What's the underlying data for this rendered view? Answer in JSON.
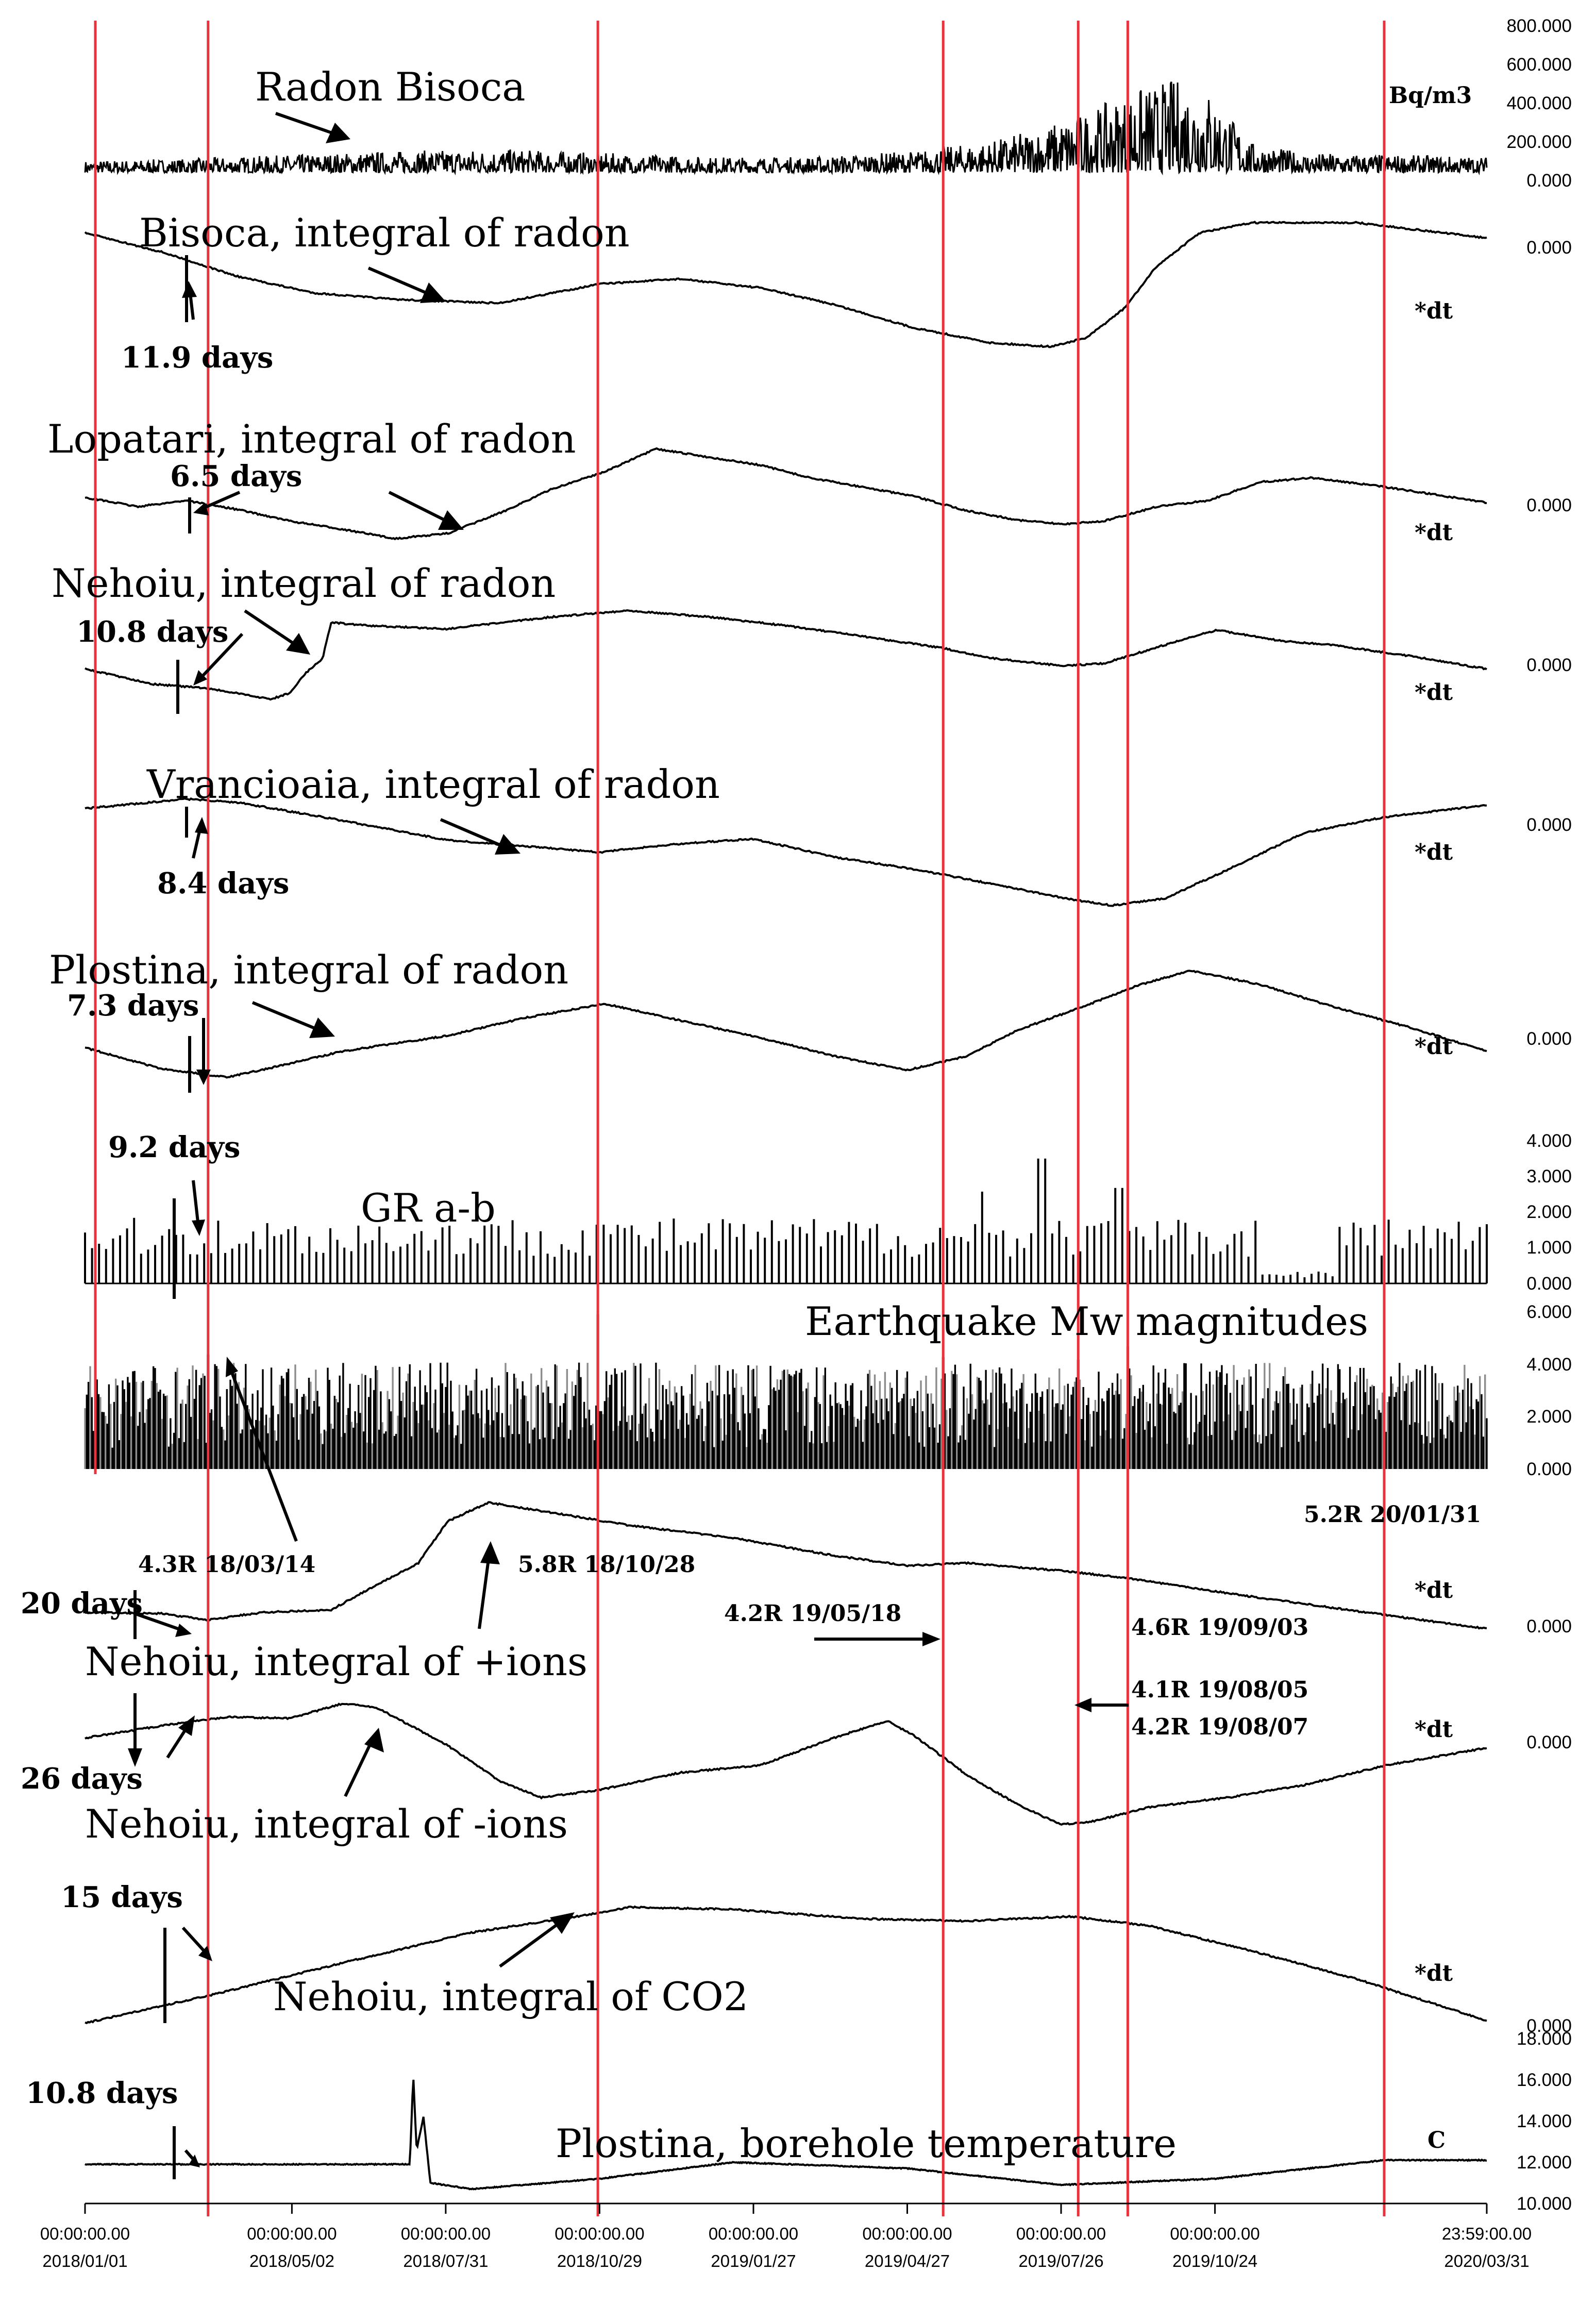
{
  "chart_data": {
    "type": "line",
    "x_start": "2018/01/01",
    "x_end": "2020/03/31",
    "panel_colors": {
      "trace": "#000000",
      "event_line": "#e8323c",
      "gray_bars": "#8c8c8c"
    },
    "time_axis": {
      "ticks": [
        {
          "time": "00:00:00.00",
          "date": "2018/01/01"
        },
        {
          "time": "00:00:00.00",
          "date": "2018/05/02"
        },
        {
          "time": "00:00:00.00",
          "date": "2018/07/31"
        },
        {
          "time": "00:00:00.00",
          "date": "2018/10/29"
        },
        {
          "time": "00:00:00.00",
          "date": "2019/01/27"
        },
        {
          "time": "00:00:00.00",
          "date": "2019/04/27"
        },
        {
          "time": "00:00:00.00",
          "date": "2019/07/26"
        },
        {
          "time": "00:00:00.00",
          "date": "2019/10/24"
        },
        {
          "time": "23:59:00.00",
          "date": "2020/03/31"
        }
      ]
    },
    "event_lines": [
      "2018/03/14",
      "2018/10/28",
      "2019/05/18",
      "2019/08/05",
      "2019/09/03",
      "2020/01/31"
    ],
    "panels": [
      {
        "id": "radon-bisoca",
        "title": "Radon Bisoca",
        "unit": "Bq/m3",
        "ticks": [
          "800.000",
          "600.000",
          "400.000",
          "200.000",
          "0.000"
        ],
        "ylim": [
          0,
          800000
        ],
        "kind": "noise",
        "base": 40000,
        "points": [
          [
            "2018/01/01",
            60000
          ],
          [
            "2018/03/01",
            70000
          ],
          [
            "2018/05/01",
            90000
          ],
          [
            "2018/07/01",
            110000
          ],
          [
            "2018/09/01",
            120000
          ],
          [
            "2018/11/01",
            100000
          ],
          [
            "2019/01/01",
            80000
          ],
          [
            "2019/03/01",
            80000
          ],
          [
            "2019/05/01",
            110000
          ],
          [
            "2019/06/15",
            160000
          ],
          [
            "2019/07/15",
            230000
          ],
          [
            "2019/08/15",
            330000
          ],
          [
            "2019/09/10",
            430000
          ],
          [
            "2019/10/01",
            480000
          ],
          [
            "2019/10/20",
            420000
          ],
          [
            "2019/11/15",
            150000
          ],
          [
            "2019/12/15",
            100000
          ],
          [
            "2020/03/31",
            80000
          ]
        ]
      },
      {
        "id": "bisoca-integral",
        "title": "Bisoca, integral of radon",
        "unit": "*dt",
        "ticks": [
          "0.000"
        ],
        "kind": "line",
        "ylim": [
          0,
          1
        ],
        "points": [
          [
            "2018/01/01",
            0.92
          ],
          [
            "2018/02/15",
            0.77
          ],
          [
            "2018/03/31",
            0.58
          ],
          [
            "2018/05/15",
            0.45
          ],
          [
            "2018/07/01",
            0.4
          ],
          [
            "2018/08/31",
            0.37
          ],
          [
            "2018/10/29",
            0.52
          ],
          [
            "2018/12/15",
            0.56
          ],
          [
            "2019/01/31",
            0.49
          ],
          [
            "2019/03/15",
            0.36
          ],
          [
            "2019/04/30",
            0.18
          ],
          [
            "2019/06/15",
            0.06
          ],
          [
            "2019/07/20",
            0.03
          ],
          [
            "2019/08/10",
            0.1
          ],
          [
            "2019/09/01",
            0.33
          ],
          [
            "2019/09/20",
            0.66
          ],
          [
            "2019/10/15",
            0.92
          ],
          [
            "2019/11/15",
            1.0
          ],
          [
            "2020/01/15",
            1.0
          ],
          [
            "2020/03/31",
            0.88
          ]
        ]
      },
      {
        "id": "lopatari-integral",
        "title": "Lopatari, integral of radon",
        "unit": "*dt",
        "ticks": [
          "0.000"
        ],
        "kind": "line",
        "ylim": [
          0,
          1
        ],
        "points": [
          [
            "2018/01/01",
            0.45
          ],
          [
            "2018/02/01",
            0.36
          ],
          [
            "2018/03/01",
            0.42
          ],
          [
            "2018/04/01",
            0.33
          ],
          [
            "2018/05/01",
            0.22
          ],
          [
            "2018/06/01",
            0.14
          ],
          [
            "2018/07/01",
            0.05
          ],
          [
            "2018/08/01",
            0.1
          ],
          [
            "2018/09/01",
            0.3
          ],
          [
            "2018/10/01",
            0.53
          ],
          [
            "2018/11/01",
            0.7
          ],
          [
            "2018/12/01",
            0.92
          ],
          [
            "2019/01/01",
            0.84
          ],
          [
            "2019/02/01",
            0.76
          ],
          [
            "2019/03/01",
            0.64
          ],
          [
            "2019/04/01",
            0.55
          ],
          [
            "2019/05/01",
            0.46
          ],
          [
            "2019/06/01",
            0.32
          ],
          [
            "2019/07/01",
            0.23
          ],
          [
            "2019/07/26",
            0.19
          ],
          [
            "2019/08/20",
            0.22
          ],
          [
            "2019/09/20",
            0.36
          ],
          [
            "2019/10/20",
            0.42
          ],
          [
            "2019/11/20",
            0.6
          ],
          [
            "2019/12/20",
            0.64
          ],
          [
            "2020/02/01",
            0.55
          ],
          [
            "2020/03/31",
            0.4
          ]
        ]
      },
      {
        "id": "nehoiu-radon-integral",
        "title": "Nehoiu, integral of radon",
        "unit": "*dt",
        "ticks": [
          "0.000"
        ],
        "kind": "line",
        "ylim": [
          0,
          1
        ],
        "points": [
          [
            "2018/01/01",
            0.32
          ],
          [
            "2018/02/10",
            0.18
          ],
          [
            "2018/03/14",
            0.14
          ],
          [
            "2018/04/20",
            0.04
          ],
          [
            "2018/05/01",
            0.1
          ],
          [
            "2018/05/10",
            0.28
          ],
          [
            "2018/05/20",
            0.42
          ],
          [
            "2018/05/25",
            0.75
          ],
          [
            "2018/06/15",
            0.72
          ],
          [
            "2018/08/01",
            0.69
          ],
          [
            "2018/10/01",
            0.8
          ],
          [
            "2018/11/15",
            0.86
          ],
          [
            "2019/01/01",
            0.8
          ],
          [
            "2019/02/15",
            0.72
          ],
          [
            "2019/04/01",
            0.62
          ],
          [
            "2019/05/15",
            0.52
          ],
          [
            "2019/06/15",
            0.42
          ],
          [
            "2019/07/26",
            0.35
          ],
          [
            "2019/08/20",
            0.37
          ],
          [
            "2019/09/20",
            0.52
          ],
          [
            "2019/10/25",
            0.68
          ],
          [
            "2019/12/01",
            0.58
          ],
          [
            "2020/01/01",
            0.54
          ],
          [
            "2020/02/15",
            0.44
          ],
          [
            "2020/03/31",
            0.32
          ]
        ]
      },
      {
        "id": "vrancioaia-integral",
        "title": "Vrancioaia, integral of radon",
        "unit": "*dt",
        "ticks": [
          "0.000"
        ],
        "kind": "line",
        "ylim": [
          0,
          1
        ],
        "points": [
          [
            "2018/01/01",
            0.92
          ],
          [
            "2018/03/01",
            1.0
          ],
          [
            "2018/04/01",
            0.97
          ],
          [
            "2018/06/01",
            0.82
          ],
          [
            "2018/08/01",
            0.66
          ],
          [
            "2018/10/29",
            0.56
          ],
          [
            "2018/12/15",
            0.63
          ],
          [
            "2019/01/27",
            0.67
          ],
          [
            "2019/03/15",
            0.52
          ],
          [
            "2019/05/01",
            0.42
          ],
          [
            "2019/06/15",
            0.3
          ],
          [
            "2019/08/01",
            0.17
          ],
          [
            "2019/08/25",
            0.12
          ],
          [
            "2019/09/25",
            0.18
          ],
          [
            "2019/11/01",
            0.42
          ],
          [
            "2019/12/15",
            0.72
          ],
          [
            "2020/01/31",
            0.85
          ],
          [
            "2020/03/31",
            0.95
          ]
        ]
      },
      {
        "id": "plostina-integral",
        "title": "Plostina, integral of radon",
        "unit": "*dt",
        "ticks": [
          "0.000"
        ],
        "kind": "line",
        "ylim": [
          0,
          1
        ],
        "points": [
          [
            "2018/01/01",
            0.25
          ],
          [
            "2018/02/15",
            0.07
          ],
          [
            "2018/03/25",
            0.0
          ],
          [
            "2018/04/20",
            0.08
          ],
          [
            "2018/06/01",
            0.22
          ],
          [
            "2018/08/01",
            0.35
          ],
          [
            "2018/09/15",
            0.5
          ],
          [
            "2018/11/01",
            0.62
          ],
          [
            "2018/12/15",
            0.48
          ],
          [
            "2019/02/01",
            0.33
          ],
          [
            "2019/03/15",
            0.18
          ],
          [
            "2019/04/27",
            0.06
          ],
          [
            "2019/06/01",
            0.18
          ],
          [
            "2019/07/01",
            0.4
          ],
          [
            "2019/08/05",
            0.58
          ],
          [
            "2019/09/10",
            0.78
          ],
          [
            "2019/10/10",
            0.9
          ],
          [
            "2019/11/20",
            0.78
          ],
          [
            "2019/12/31",
            0.6
          ],
          [
            "2020/02/15",
            0.42
          ],
          [
            "2020/03/31",
            0.22
          ]
        ]
      },
      {
        "id": "gr-ab",
        "title": "GR a-b",
        "unit": "",
        "ticks": [
          "4.000",
          "3.000",
          "2.000",
          "1.000",
          "0.000"
        ],
        "ylim": [
          0,
          4
        ],
        "kind": "spikes",
        "base": 1.2,
        "peaks": [
          [
            "2018/10/29",
            1.6
          ],
          [
            "2019/06/10",
            2.5
          ],
          [
            "2019/07/15",
            3.4
          ],
          [
            "2019/08/28",
            2.6
          ]
        ]
      },
      {
        "id": "mw-magnitudes",
        "title": "Earthquake Mw magnitudes",
        "unit": "",
        "ticks": [
          "6.000",
          "4.000",
          "2.000",
          "0.000"
        ],
        "ylim": [
          0,
          6
        ],
        "kind": "bars",
        "peaks": [
          [
            "2018/03/14",
            4.3
          ],
          [
            "2018/10/28",
            5.8
          ],
          [
            "2019/05/18",
            4.2
          ],
          [
            "2019/08/05",
            4.1
          ],
          [
            "2019/09/03",
            4.6
          ],
          [
            "2020/01/31",
            5.2
          ]
        ]
      },
      {
        "id": "nehoiu-pos-ions",
        "title": "Nehoiu, integral of +ions",
        "unit": "*dt",
        "ticks": [
          "0.000"
        ],
        "kind": "line",
        "ylim": [
          0,
          1
        ],
        "points": [
          [
            "2018/01/01",
            0.13
          ],
          [
            "2018/02/15",
            0.12
          ],
          [
            "2018/03/14",
            0.07
          ],
          [
            "2018/04/15",
            0.13
          ],
          [
            "2018/05/25",
            0.15
          ],
          [
            "2018/06/25",
            0.38
          ],
          [
            "2018/07/15",
            0.52
          ],
          [
            "2018/08/01",
            0.85
          ],
          [
            "2018/08/25",
            1.0
          ],
          [
            "2018/10/01",
            0.92
          ],
          [
            "2018/11/15",
            0.82
          ],
          [
            "2019/01/15",
            0.72
          ],
          [
            "2019/03/15",
            0.58
          ],
          [
            "2019/04/27",
            0.5
          ],
          [
            "2019/06/01",
            0.52
          ],
          [
            "2019/07/26",
            0.46
          ],
          [
            "2019/09/03",
            0.4
          ],
          [
            "2019/11/01",
            0.28
          ],
          [
            "2020/01/15",
            0.14
          ],
          [
            "2020/03/31",
            0.0
          ]
        ]
      },
      {
        "id": "nehoiu-neg-ions",
        "title": "Nehoiu, integral of -ions",
        "unit": "*dt",
        "ticks": [
          "0.000"
        ],
        "kind": "line",
        "ylim": [
          0,
          1
        ],
        "points": [
          [
            "2018/01/01",
            0.7
          ],
          [
            "2018/02/15",
            0.8
          ],
          [
            "2018/03/25",
            0.87
          ],
          [
            "2018/05/01",
            0.86
          ],
          [
            "2018/06/01",
            0.98
          ],
          [
            "2018/06/20",
            0.95
          ],
          [
            "2018/07/31",
            0.65
          ],
          [
            "2018/09/01",
            0.35
          ],
          [
            "2018/09/25",
            0.22
          ],
          [
            "2018/10/29",
            0.28
          ],
          [
            "2018/12/15",
            0.42
          ],
          [
            "2019/01/31",
            0.48
          ],
          [
            "2019/03/15",
            0.7
          ],
          [
            "2019/04/15",
            0.84
          ],
          [
            "2019/05/01",
            0.72
          ],
          [
            "2019/06/01",
            0.4
          ],
          [
            "2019/07/01",
            0.16
          ],
          [
            "2019/07/26",
            0.0
          ],
          [
            "2019/08/15",
            0.03
          ],
          [
            "2019/09/15",
            0.14
          ],
          [
            "2019/11/01",
            0.22
          ],
          [
            "2019/12/15",
            0.32
          ],
          [
            "2020/02/01",
            0.48
          ],
          [
            "2020/03/31",
            0.62
          ]
        ]
      },
      {
        "id": "nehoiu-co2",
        "title": "Nehoiu, integral of CO2",
        "unit": "*dt",
        "ticks": [
          "0.000"
        ],
        "kind": "line",
        "ylim": [
          0,
          1
        ],
        "points": [
          [
            "2018/01/01",
            0.0
          ],
          [
            "2018/03/15",
            0.24
          ],
          [
            "2018/06/01",
            0.52
          ],
          [
            "2018/08/15",
            0.78
          ],
          [
            "2018/10/29",
            0.95
          ],
          [
            "2018/11/15",
            1.0
          ],
          [
            "2019/01/15",
            0.98
          ],
          [
            "2019/04/01",
            0.9
          ],
          [
            "2019/06/01",
            0.88
          ],
          [
            "2019/08/01",
            0.92
          ],
          [
            "2019/09/15",
            0.84
          ],
          [
            "2019/11/15",
            0.62
          ],
          [
            "2020/01/15",
            0.38
          ],
          [
            "2020/03/31",
            0.02
          ]
        ]
      },
      {
        "id": "plostina-temperature",
        "title": "Plostina, borehole temperature",
        "unit": "C",
        "ticks": [
          "18.000",
          "16.000",
          "14.000",
          "12.000",
          "10.000"
        ],
        "ylim": [
          10,
          18
        ],
        "kind": "temp",
        "points": [
          [
            "2018/01/01",
            11.9
          ],
          [
            "2018/04/01",
            11.9
          ],
          [
            "2018/07/10",
            11.9
          ],
          [
            "2018/07/12",
            16.2
          ],
          [
            "2018/07/14",
            12.6
          ],
          [
            "2018/07/18",
            14.2
          ],
          [
            "2018/07/22",
            11.0
          ],
          [
            "2018/08/15",
            10.7
          ],
          [
            "2018/10/29",
            11.2
          ],
          [
            "2019/01/15",
            12.0
          ],
          [
            "2019/04/27",
            11.7
          ],
          [
            "2019/07/26",
            10.9
          ],
          [
            "2019/10/24",
            11.2
          ],
          [
            "2020/01/31",
            12.1
          ],
          [
            "2020/03/31",
            12.1
          ]
        ]
      }
    ],
    "annotations": {
      "lag_bisoca": "11.9 days",
      "lag_lopatari": "6.5 days",
      "lag_nehoiu_radon": "10.8 days",
      "lag_vrancioaia": "8.4 days",
      "lag_plostina": "7.3 days",
      "lag_gr": "9.2 days",
      "lag_pos_ions": "20 days",
      "lag_neg_ions": "26 days",
      "lag_co2": "15 days",
      "lag_temp": "10.8 days",
      "eq_0314": "4.3R 18/03/14",
      "eq_1028": "5.8R 18/10/28",
      "eq_0518": "4.2R 19/05/18",
      "eq_0903": "4.6R 19/09/03",
      "eq_0805": "4.1R 19/08/05",
      "eq_0807": "4.2R 19/08/07",
      "eq_0131": "5.2R 20/01/31"
    }
  }
}
